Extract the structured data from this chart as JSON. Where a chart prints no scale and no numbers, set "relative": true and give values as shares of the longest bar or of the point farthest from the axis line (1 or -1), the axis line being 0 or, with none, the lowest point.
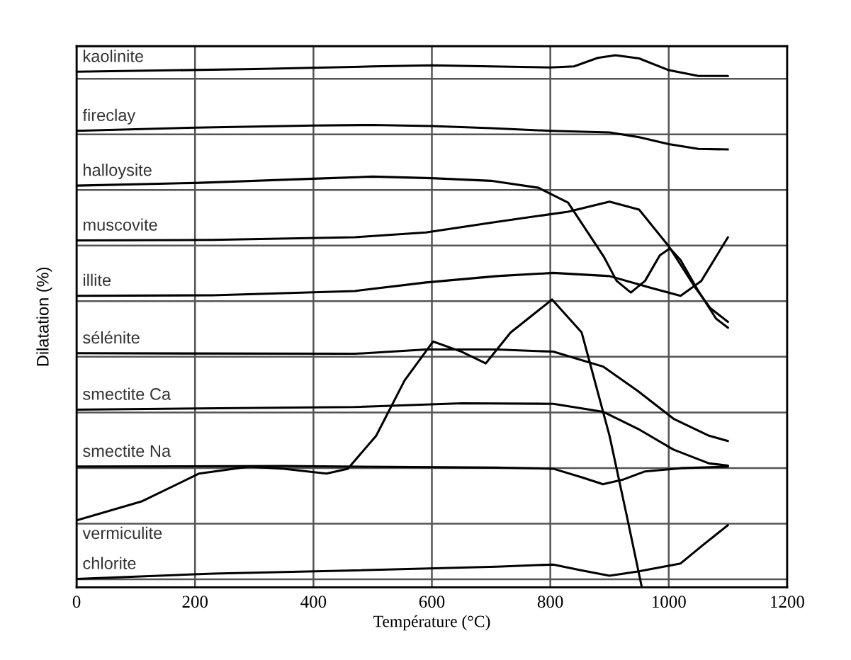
{
  "chart_data": {
    "type": "line",
    "relative": true,
    "xlabel": "Température (°C)",
    "ylabel": "Dilatation (%)",
    "xlim": [
      0,
      1200
    ],
    "xticks": [
      0,
      200,
      400,
      600,
      800,
      1000,
      1200
    ],
    "grid": true,
    "legend": false,
    "marker": "none",
    "line_style": "solid",
    "series": [
      {
        "name": "kaolinite",
        "color": "#000000",
        "x": [
          0,
          300,
          500,
          600,
          700,
          800,
          840,
          880,
          910,
          950,
          1000,
          1050,
          1100
        ],
        "values": [
          0.969,
          0.974,
          0.979,
          0.981,
          0.979,
          0.977,
          0.979,
          0.995,
          1.0,
          0.994,
          0.972,
          0.961,
          0.961
        ]
      },
      {
        "name": "fireclay",
        "color": "#000000",
        "x": [
          0,
          200,
          400,
          500,
          600,
          700,
          800,
          900,
          950,
          1000,
          1050,
          1100
        ],
        "values": [
          0.858,
          0.864,
          0.868,
          0.869,
          0.867,
          0.863,
          0.858,
          0.855,
          0.846,
          0.833,
          0.824,
          0.823
        ]
      },
      {
        "name": "halloysite",
        "color": "#000000",
        "x": [
          0,
          200,
          400,
          500,
          600,
          700,
          780,
          830,
          890,
          912,
          936,
          960,
          985,
          1002,
          1020,
          1050,
          1080,
          1100
        ],
        "values": [
          0.755,
          0.76,
          0.768,
          0.772,
          0.769,
          0.764,
          0.751,
          0.723,
          0.622,
          0.576,
          0.554,
          0.576,
          0.624,
          0.637,
          0.615,
          0.557,
          0.505,
          0.488
        ]
      },
      {
        "name": "muscovite",
        "color": "#000000",
        "x": [
          0,
          230,
          470,
          590,
          710,
          830,
          900,
          950,
          1000,
          1045,
          1070,
          1100
        ],
        "values": [
          0.652,
          0.653,
          0.658,
          0.667,
          0.687,
          0.706,
          0.725,
          0.71,
          0.641,
          0.563,
          0.525,
          0.499
        ]
      },
      {
        "name": "illite",
        "color": "#000000",
        "x": [
          0,
          230,
          470,
          590,
          710,
          805,
          900,
          970,
          1020,
          1055,
          1100
        ],
        "values": [
          0.548,
          0.549,
          0.557,
          0.573,
          0.585,
          0.591,
          0.585,
          0.563,
          0.548,
          0.576,
          0.658
        ]
      },
      {
        "name": "sélénite",
        "color": "#000000",
        "x": [
          0,
          470,
          590,
          709,
          805,
          889,
          948,
          1008,
          1068,
          1100
        ],
        "values": [
          0.44,
          0.439,
          0.447,
          0.447,
          0.443,
          0.415,
          0.369,
          0.317,
          0.285,
          0.275
        ]
      },
      {
        "name": "smectite Ca",
        "color": "#000000",
        "x": [
          0,
          470,
          650,
          805,
          889,
          948,
          1008,
          1068,
          1100
        ],
        "values": [
          0.334,
          0.339,
          0.346,
          0.345,
          0.33,
          0.298,
          0.259,
          0.233,
          0.229
        ]
      },
      {
        "name": "smectite Na",
        "color": "#000000",
        "x": [
          0,
          350,
          709,
          805,
          853,
          889,
          924,
          960,
          1020,
          1100
        ],
        "values": [
          0.227,
          0.228,
          0.225,
          0.223,
          0.207,
          0.194,
          0.203,
          0.218,
          0.224,
          0.227
        ]
      },
      {
        "name": "vermiculite",
        "color": "#000000",
        "x": [
          0,
          111,
          207,
          291,
          350,
          422,
          458,
          506,
          554,
          602,
          650,
          691,
          733,
          803,
          853,
          900,
          930,
          954
        ],
        "values": [
          0.126,
          0.162,
          0.214,
          0.227,
          0.223,
          0.214,
          0.223,
          0.285,
          0.389,
          0.462,
          0.443,
          0.421,
          0.479,
          0.541,
          0.479,
          0.285,
          0.13,
          0.003
        ]
      },
      {
        "name": "chlorite",
        "color": "#000000",
        "x": [
          0,
          231,
          470,
          709,
          805,
          853,
          900,
          948,
          1020,
          1056,
          1100
        ],
        "values": [
          0.016,
          0.026,
          0.032,
          0.039,
          0.043,
          0.032,
          0.022,
          0.03,
          0.045,
          0.078,
          0.117
        ]
      }
    ]
  }
}
